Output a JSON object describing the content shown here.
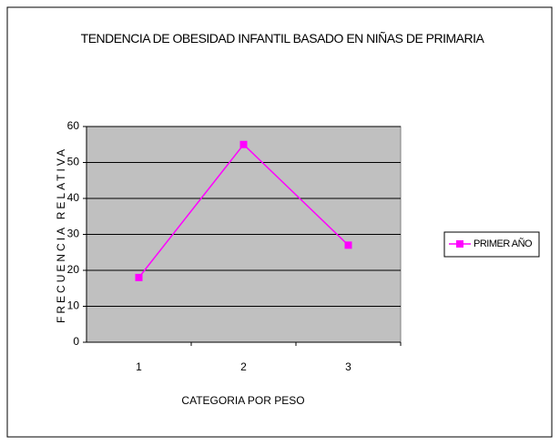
{
  "chart_data": {
    "type": "line",
    "title": "TENDENCIA DE OBESIDAD INFANTIL BASADO EN NIÑAS DE PRIMARIA",
    "x_label": "CATEGORIA POR PESO",
    "y_label": "FRECUENCIA RELATIVA",
    "categories": [
      "1",
      "2",
      "3"
    ],
    "series": [
      {
        "name": "PRIMER AÑO",
        "color": "#ff00ff",
        "values": [
          18,
          55,
          27
        ]
      }
    ],
    "ylim": [
      0,
      60
    ],
    "yticks": [
      0,
      10,
      20,
      30,
      40,
      50,
      60
    ],
    "grid": true,
    "legend": "right"
  }
}
